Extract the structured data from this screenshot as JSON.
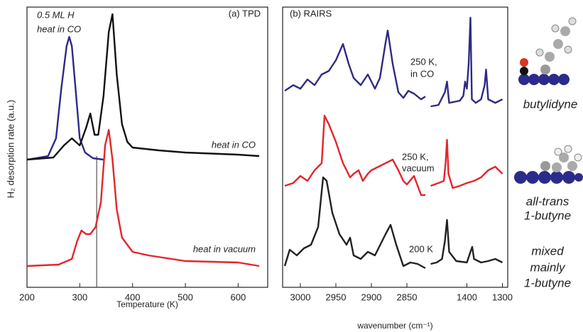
{
  "chart_data": [
    {
      "type": "line",
      "title": "(a) TPD",
      "xlabel": "Temperature (K)",
      "ylabel": "H₂ desorption rate (a.u.)",
      "xlim": [
        200,
        656
      ],
      "ylim": [
        0,
        395
      ],
      "xticks": [
        200,
        300,
        400,
        500,
        600
      ],
      "annotations": [
        "0.5 ML H",
        "heat in CO",
        "heat in CO",
        "heat in vacuum"
      ],
      "vline": {
        "x": 332,
        "y": [
          0,
          185
        ]
      },
      "series": [
        {
          "color": "#2e2a85",
          "x": [
            200,
            240,
            255,
            265,
            275,
            280,
            285,
            292,
            300,
            310,
            325,
            345
          ],
          "values": [
            180,
            185,
            210,
            280,
            340,
            353,
            340,
            280,
            210,
            190,
            182,
            180
          ]
        },
        {
          "color": "#111111",
          "x": [
            200,
            250,
            270,
            285,
            300,
            312,
            320,
            328,
            335,
            345,
            355,
            362,
            370,
            380,
            390,
            400,
            450,
            500,
            600,
            640
          ],
          "values": [
            180,
            183,
            200,
            210,
            200,
            225,
            245,
            215,
            215,
            270,
            360,
            385,
            300,
            230,
            205,
            197,
            193,
            190,
            187,
            185
          ]
        },
        {
          "color": "#e3262b",
          "x": [
            200,
            260,
            285,
            295,
            303,
            312,
            320,
            330,
            340,
            348,
            355,
            362,
            370,
            380,
            400,
            430,
            500,
            600,
            640
          ],
          "values": [
            30,
            32,
            40,
            65,
            80,
            75,
            75,
            85,
            120,
            200,
            222,
            180,
            110,
            70,
            50,
            45,
            37,
            35,
            30
          ]
        }
      ]
    },
    {
      "type": "line",
      "title": "(b) RAIRS",
      "xlabel": "wavenumber (cm⁻¹)",
      "xlim": [
        [
          3025,
          2820
        ],
        [
          1505,
          1285
        ]
      ],
      "ylim": [
        0,
        395
      ],
      "xticks": [
        3000,
        2950,
        2900,
        2850,
        1400,
        1300
      ],
      "annotations": [
        "250 K,",
        "in CO",
        "250 K,",
        "vacuum",
        "200 K"
      ],
      "series": [
        {
          "color": "#2e2a85",
          "x": [
            3022,
            3010,
            3000,
            2990,
            2980,
            2970,
            2960,
            2950,
            2940,
            2932,
            2925,
            2915,
            2905,
            2895,
            2888,
            2880,
            2877,
            2870,
            2862,
            2855,
            2848,
            2840,
            2830,
            2824,
            null,
            1502,
            1480,
            1462,
            1456,
            1450,
            1420,
            1410,
            1405,
            1400,
            1395,
            1390,
            1386,
            1375,
            1360,
            1350,
            1346,
            1340,
            1320,
            1300
          ],
          "values": [
            277,
            285,
            280,
            293,
            285,
            300,
            305,
            320,
            343,
            315,
            295,
            285,
            300,
            280,
            295,
            345,
            362,
            315,
            275,
            267,
            277,
            273,
            265,
            269,
            null,
            255,
            257,
            275,
            290,
            260,
            263,
            270,
            290,
            280,
            315,
            380,
            265,
            260,
            265,
            285,
            307,
            265,
            260,
            265
          ]
        },
        {
          "color": "#e3262b",
          "x": [
            3022,
            3010,
            3000,
            2990,
            2980,
            2970,
            2966,
            2960,
            2950,
            2940,
            2930,
            2925,
            2918,
            2912,
            2905,
            2900,
            2890,
            2880,
            2870,
            2862,
            2855,
            2850,
            2840,
            2830,
            2824,
            null,
            1502,
            1480,
            1465,
            1460,
            1456,
            1452,
            1440,
            1420,
            1400,
            1380,
            1360,
            1340,
            1320,
            1300
          ],
          "values": [
            143,
            147,
            157,
            150,
            165,
            175,
            242,
            230,
            205,
            175,
            155,
            160,
            165,
            150,
            160,
            165,
            170,
            175,
            180,
            165,
            150,
            145,
            157,
            130,
            130,
            null,
            143,
            147,
            150,
            175,
            208,
            160,
            140,
            143,
            147,
            150,
            155,
            165,
            170,
            160
          ]
        },
        {
          "color": "#222222",
          "x": [
            3022,
            3015,
            3005,
            2995,
            2985,
            2975,
            2968,
            2963,
            2955,
            2945,
            2935,
            2930,
            2925,
            2915,
            2905,
            2895,
            2880,
            2873,
            2865,
            2855,
            2845,
            2835,
            2824,
            null,
            1502,
            1485,
            1470,
            1462,
            1456,
            1450,
            1430,
            1400,
            1390,
            1385,
            1380,
            1360,
            1340,
            1320,
            1300
          ],
          "values": [
            30,
            53,
            45,
            55,
            60,
            85,
            155,
            150,
            105,
            75,
            60,
            70,
            45,
            40,
            50,
            45,
            75,
            88,
            60,
            30,
            35,
            33,
            27,
            null,
            33,
            35,
            40,
            65,
            95,
            50,
            37,
            35,
            50,
            57,
            40,
            35,
            37,
            40,
            35
          ]
        }
      ]
    },
    {
      "labels": [
        "butylidyne",
        "all-trans",
        "1-butyne",
        "mixed",
        "mainly",
        "1-butyne"
      ]
    }
  ]
}
